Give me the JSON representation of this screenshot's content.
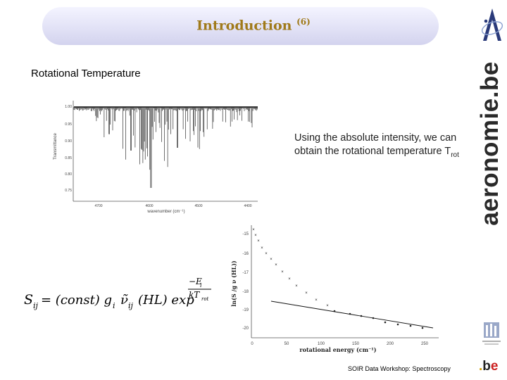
{
  "slide": {
    "title": "Introduction",
    "title_superscript": "(6)",
    "subtitle": "Rotational Temperature",
    "note_text": "Using the absolute intensity, we can obtain the rotational temperature T",
    "note_subscript": "rot",
    "footer": "SOIR Data Workshop: Spectroscopy"
  },
  "spectrum": {
    "ylabel": "Transmittance",
    "xlabel": "wavenumber (cm⁻¹)",
    "yticks": [
      "1.00",
      "0.95",
      "0.90",
      "0.85",
      "0.80",
      "0.75"
    ],
    "xticks": [
      "4700",
      "4600",
      "4500",
      "4400"
    ]
  },
  "formula": {
    "lhs": "S",
    "lhs_sub": "ij",
    "rhs_1": " = (const) g",
    "rhs_1_sub": "i",
    "nu": "ν̃",
    "nu_sub": "ij",
    "rhs_2": "(HL) exp",
    "exp_num": "−E",
    "exp_num_sub": "i",
    "exp_den": "kT",
    "exp_den_sub": "rot"
  },
  "boltzmann": {
    "xlabel": "rotational energy (cm⁻¹)",
    "ylabel": "ln(S /g ν (HL))",
    "xticks": [
      "0",
      "50",
      "100",
      "150",
      "200",
      "250"
    ],
    "yticks": [
      "-15",
      "-16",
      "-17",
      "-18",
      "-19",
      "-20"
    ]
  },
  "logos": {
    "wordmark": "aeronomie.be",
    "belogo_dot": ".",
    "belogo_b": "b",
    "belogo_e": "e"
  },
  "colors": {
    "title": "#a07a1a",
    "title_bar": "#e2e2f6",
    "accent_dot": "#e06040"
  }
}
